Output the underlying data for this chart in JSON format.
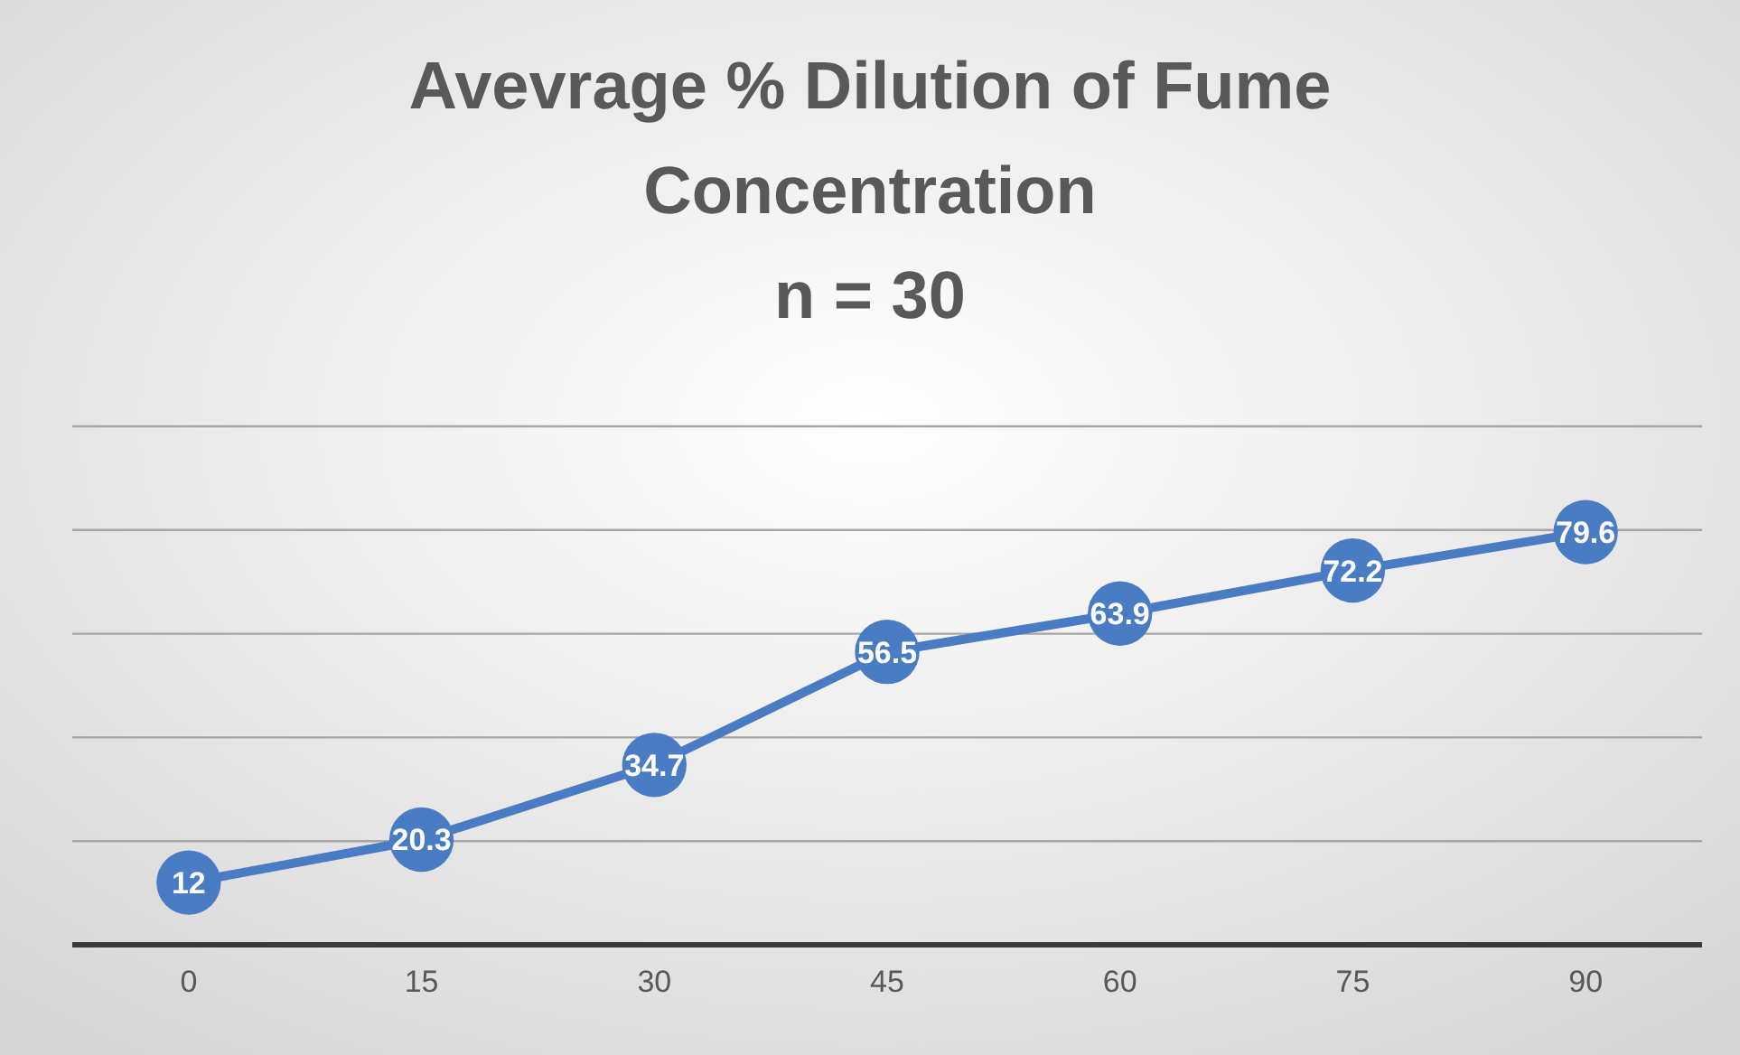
{
  "chart_data": {
    "type": "line",
    "title": "Avevrage % Dilution of Fume Concentration",
    "subtitle": "n = 30",
    "categories": [
      "0",
      "15",
      "30",
      "45",
      "60",
      "75",
      "90"
    ],
    "series": [
      {
        "color": "#4a7cc4",
        "values": [
          12,
          20.3,
          34.7,
          56.5,
          63.9,
          72.2,
          79.6
        ]
      }
    ],
    "ylim": [
      0,
      100
    ],
    "yticks": [
      {
        "value": 0,
        "label": null
      },
      {
        "value": 20,
        "label": null
      },
      {
        "value": 40,
        "label": null
      },
      {
        "value": 60,
        "label": null
      },
      {
        "value": 80,
        "label": null
      },
      {
        "value": 100,
        "label": null
      }
    ],
    "grid": "y",
    "tick_labels": "x",
    "marker": "circle",
    "data_labels": true
  }
}
